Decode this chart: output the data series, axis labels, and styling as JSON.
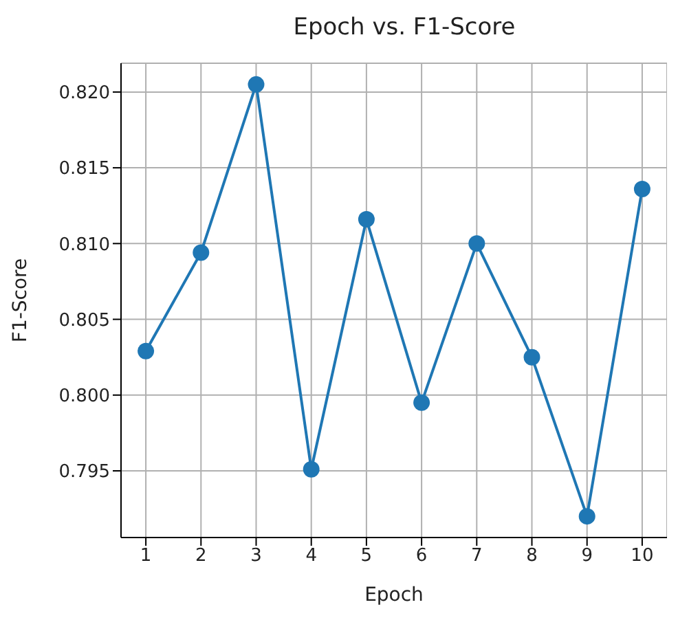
{
  "chart_data": {
    "type": "line",
    "title": "Epoch vs. F1-Score",
    "xlabel": "Epoch",
    "ylabel": "F1-Score",
    "x": [
      1,
      2,
      3,
      4,
      5,
      6,
      7,
      8,
      9,
      10
    ],
    "series": [
      {
        "color": "#1f77b4",
        "values": [
          0.8029,
          0.8094,
          0.8205,
          0.7951,
          0.8116,
          0.7995,
          0.81,
          0.8025,
          0.792,
          0.8136
        ]
      }
    ],
    "xlim": [
      0.55,
      10.45
    ],
    "xticks": [
      1,
      2,
      3,
      4,
      5,
      6,
      7,
      8,
      9,
      10
    ],
    "ylim": [
      0.7906,
      0.8219
    ],
    "yticks": [
      {
        "value": 0.795,
        "label": "0.795"
      },
      {
        "value": 0.8,
        "label": "0.800"
      },
      {
        "value": 0.805,
        "label": "0.805"
      },
      {
        "value": 0.81,
        "label": "0.810"
      },
      {
        "value": 0.815,
        "label": "0.815"
      },
      {
        "value": 0.82,
        "label": "0.820"
      }
    ],
    "grid": true,
    "marker": "circle",
    "line_style": "solid",
    "legend": false
  }
}
